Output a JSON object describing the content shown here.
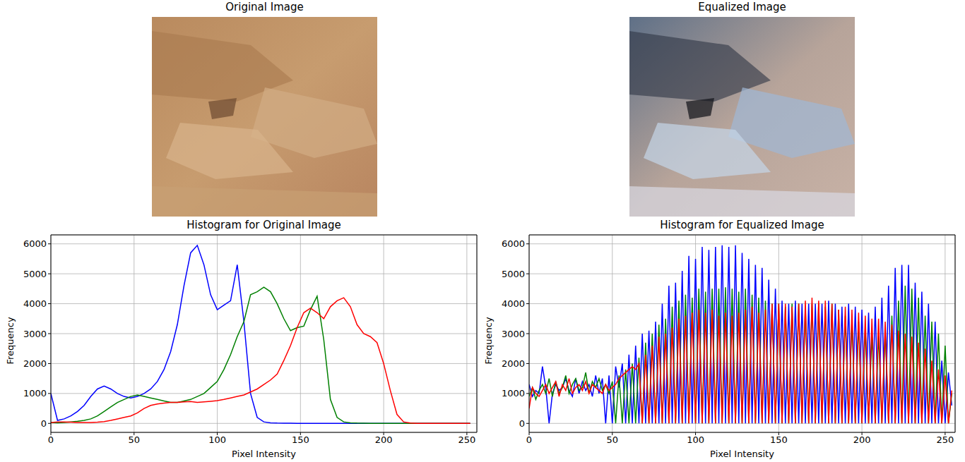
{
  "images": [
    {
      "title": "Original Image"
    },
    {
      "title": "Equalized Image"
    }
  ],
  "chart_data": [
    {
      "type": "line",
      "title": "Histogram for Original Image",
      "x_label": "Pixel Intensity",
      "y_label": "Frequency",
      "grid": true,
      "xlim": [
        0,
        256
      ],
      "ylim": [
        -300,
        6300
      ],
      "xticks": [
        0,
        50,
        100,
        150,
        200,
        250
      ],
      "yticks": [
        0,
        1000,
        2000,
        3000,
        4000,
        5000,
        6000
      ],
      "x": [
        0,
        4,
        8,
        12,
        16,
        20,
        24,
        28,
        32,
        36,
        40,
        44,
        48,
        52,
        56,
        60,
        64,
        68,
        72,
        76,
        80,
        84,
        88,
        92,
        96,
        100,
        104,
        108,
        112,
        116,
        120,
        124,
        128,
        132,
        136,
        140,
        144,
        148,
        152,
        156,
        160,
        164,
        168,
        172,
        176,
        180,
        184,
        188,
        192,
        196,
        200,
        204,
        208,
        212,
        216,
        220,
        224,
        228,
        232,
        236,
        240,
        244,
        248,
        252
      ],
      "series": [
        {
          "color": "#0000ff",
          "values": [
            1000,
            100,
            150,
            250,
            400,
            600,
            900,
            1150,
            1250,
            1150,
            1000,
            900,
            850,
            900,
            1000,
            1150,
            1400,
            1800,
            2400,
            3300,
            4600,
            5700,
            5950,
            5300,
            4300,
            3800,
            3950,
            4100,
            5300,
            3400,
            1000,
            200,
            50,
            20,
            10,
            5,
            5,
            0,
            0,
            0,
            0,
            0,
            0,
            0,
            0,
            0,
            0,
            0,
            0,
            0,
            0,
            0,
            0,
            0,
            0,
            0,
            0,
            0,
            0,
            0,
            0,
            0,
            0,
            0
          ]
        },
        {
          "color": "#008000",
          "values": [
            30,
            20,
            30,
            50,
            70,
            100,
            150,
            250,
            400,
            550,
            700,
            800,
            900,
            950,
            900,
            850,
            800,
            750,
            700,
            700,
            750,
            800,
            900,
            1000,
            1200,
            1400,
            1800,
            2300,
            2900,
            3400,
            4300,
            4400,
            4550,
            4400,
            4000,
            3500,
            3100,
            3200,
            3250,
            3800,
            4250,
            2800,
            800,
            200,
            50,
            20,
            10,
            5,
            0,
            0,
            0,
            0,
            0,
            0,
            0,
            0,
            0,
            0,
            0,
            0,
            0,
            0,
            0,
            0
          ]
        },
        {
          "color": "#ff0000",
          "values": [
            30,
            50,
            50,
            40,
            30,
            30,
            30,
            40,
            60,
            100,
            150,
            200,
            250,
            350,
            500,
            600,
            650,
            680,
            700,
            700,
            720,
            730,
            700,
            720,
            740,
            760,
            800,
            850,
            900,
            950,
            1050,
            1150,
            1300,
            1450,
            1650,
            2100,
            2600,
            3200,
            3700,
            3850,
            3700,
            3500,
            3900,
            4100,
            4200,
            3900,
            3300,
            3000,
            2900,
            2700,
            2000,
            1100,
            300,
            50,
            10,
            0,
            0,
            0,
            0,
            0,
            0,
            0,
            0,
            0
          ]
        }
      ]
    },
    {
      "type": "line",
      "title": "Histogram for Equalized Image",
      "x_label": "Pixel Intensity",
      "y_label": "Frequency",
      "grid": true,
      "xlim": [
        0,
        256
      ],
      "ylim": [
        -300,
        6300
      ],
      "xticks": [
        0,
        50,
        100,
        150,
        200,
        250
      ],
      "yticks": [
        0,
        1000,
        2000,
        3000,
        4000,
        5000,
        6000
      ],
      "x": [
        0,
        2,
        4,
        6,
        8,
        10,
        12,
        14,
        16,
        18,
        20,
        22,
        24,
        26,
        28,
        30,
        32,
        34,
        36,
        38,
        40,
        42,
        44,
        46,
        48,
        50,
        52,
        54,
        56,
        58,
        60,
        62,
        64,
        66,
        68,
        70,
        72,
        74,
        76,
        78,
        80,
        82,
        84,
        86,
        88,
        90,
        92,
        94,
        96,
        98,
        100,
        102,
        104,
        106,
        108,
        110,
        112,
        114,
        116,
        118,
        120,
        122,
        124,
        126,
        128,
        130,
        132,
        134,
        136,
        138,
        140,
        142,
        144,
        146,
        148,
        150,
        152,
        154,
        156,
        158,
        160,
        162,
        164,
        166,
        168,
        170,
        172,
        174,
        176,
        178,
        180,
        182,
        184,
        186,
        188,
        190,
        192,
        194,
        196,
        198,
        200,
        202,
        204,
        206,
        208,
        210,
        212,
        214,
        216,
        218,
        220,
        222,
        224,
        226,
        228,
        230,
        232,
        234,
        236,
        238,
        240,
        242,
        244,
        246,
        248,
        250,
        252,
        254
      ],
      "series": [
        {
          "color": "#0000ff",
          "values": [
            1300,
            900,
            1100,
            1000,
            1900,
            1200,
            0,
            1000,
            1300,
            1100,
            1200,
            1500,
            1100,
            900,
            1500,
            1000,
            1400,
            1100,
            1300,
            900,
            1600,
            1000,
            1500,
            0,
            1600,
            0,
            1900,
            1200,
            2000,
            0,
            2300,
            0,
            2600,
            0,
            3000,
            0,
            3100,
            0,
            3400,
            0,
            4000,
            0,
            4600,
            0,
            4700,
            0,
            5100,
            0,
            5600,
            0,
            5500,
            0,
            5900,
            0,
            5800,
            0,
            5900,
            0,
            5950,
            0,
            5900,
            0,
            5950,
            0,
            5700,
            0,
            5500,
            0,
            5300,
            0,
            5200,
            0,
            4800,
            0,
            4500,
            0,
            4100,
            0,
            4000,
            0,
            4100,
            0,
            4000,
            0,
            4000,
            0,
            4000,
            0,
            4000,
            0,
            4100,
            0,
            4000,
            0,
            3900,
            0,
            4000,
            0,
            3900,
            0,
            3800,
            0,
            3700,
            0,
            3900,
            0,
            4200,
            0,
            4600,
            0,
            5200,
            0,
            5300,
            0,
            5300,
            0,
            4700,
            0,
            4400,
            0,
            4000,
            0,
            3400,
            0,
            2100,
            0,
            1700,
            600
          ]
        },
        {
          "color": "#008000",
          "values": [
            900,
            1200,
            800,
            1100,
            1300,
            1000,
            1500,
            900,
            1400,
            1000,
            1200,
            1600,
            1000,
            1300,
            1500,
            1100,
            1200,
            1700,
            1000,
            1400,
            1200,
            1500,
            1100,
            1300,
            1000,
            1400,
            0,
            1600,
            0,
            1800,
            0,
            2000,
            0,
            2200,
            0,
            2700,
            0,
            3000,
            0,
            3300,
            0,
            3500,
            0,
            3900,
            0,
            4100,
            0,
            4300,
            0,
            4200,
            0,
            4500,
            0,
            4400,
            0,
            4500,
            0,
            4500,
            0,
            4550,
            0,
            4500,
            0,
            4400,
            0,
            4500,
            0,
            4300,
            0,
            4200,
            0,
            4100,
            0,
            4000,
            0,
            4000,
            0,
            3900,
            0,
            4000,
            0,
            4000,
            0,
            3900,
            0,
            4000,
            0,
            4000,
            0,
            3900,
            0,
            4000,
            0,
            3800,
            0,
            3600,
            0,
            3500,
            0,
            3400,
            0,
            3200,
            0,
            3000,
            0,
            3000,
            0,
            3100,
            0,
            3600,
            0,
            4100,
            0,
            4600,
            0,
            4500,
            0,
            4200,
            0,
            3600,
            0,
            3400,
            0,
            3000,
            0,
            2600,
            0,
            1000
          ]
        },
        {
          "color": "#ff0000",
          "values": [
            500,
            1200,
            1000,
            900,
            1100,
            1300,
            1000,
            1200,
            1400,
            900,
            1300,
            1100,
            1500,
            1000,
            1200,
            1300,
            1100,
            1400,
            1000,
            1300,
            1200,
            1100,
            1000,
            1300,
            1100,
            1200,
            1300,
            1500,
            1600,
            1700,
            1800,
            1900,
            1800,
            2000,
            0,
            2300,
            0,
            2600,
            0,
            2900,
            0,
            3000,
            0,
            3200,
            0,
            3500,
            0,
            3600,
            0,
            3700,
            0,
            3800,
            0,
            3700,
            0,
            3800,
            0,
            3600,
            0,
            3700,
            0,
            3600,
            0,
            3700,
            0,
            3800,
            0,
            3900,
            0,
            3700,
            0,
            3800,
            0,
            4000,
            0,
            4000,
            0,
            4000,
            0,
            3900,
            0,
            4000,
            0,
            4100,
            0,
            4200,
            0,
            4100,
            0,
            4100,
            0,
            4000,
            0,
            3800,
            0,
            3900,
            0,
            3800,
            0,
            3700,
            0,
            3600,
            0,
            3500,
            0,
            3500,
            0,
            3400,
            0,
            3300,
            0,
            3100,
            0,
            3000,
            0,
            2900,
            0,
            2700,
            0,
            2500,
            0,
            2100,
            0,
            1800,
            0,
            1600,
            0,
            1100
          ]
        }
      ]
    }
  ]
}
